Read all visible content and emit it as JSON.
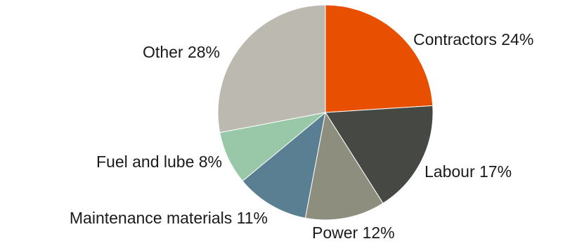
{
  "chart_data": {
    "type": "pie",
    "title": "",
    "start_angle_deg": 0,
    "direction": "clockwise",
    "slices": [
      {
        "label": "Contractors 24%",
        "category": "Contractors",
        "value": 24,
        "color": "#E85000"
      },
      {
        "label": "Labour 17%",
        "category": "Labour",
        "value": 17,
        "color": "#464844"
      },
      {
        "label": "Power 12%",
        "category": "Power",
        "value": 12,
        "color": "#8E8E7E"
      },
      {
        "label": "Maintenance materials 11%",
        "category": "Maintenance materials",
        "value": 11,
        "color": "#5A7E92"
      },
      {
        "label": "Fuel and lube 8%",
        "category": "Fuel and lube",
        "value": 8,
        "color": "#99C8A8"
      },
      {
        "label": "Other 28%",
        "category": "Other",
        "value": 28,
        "color": "#BBB9B0"
      }
    ]
  }
}
